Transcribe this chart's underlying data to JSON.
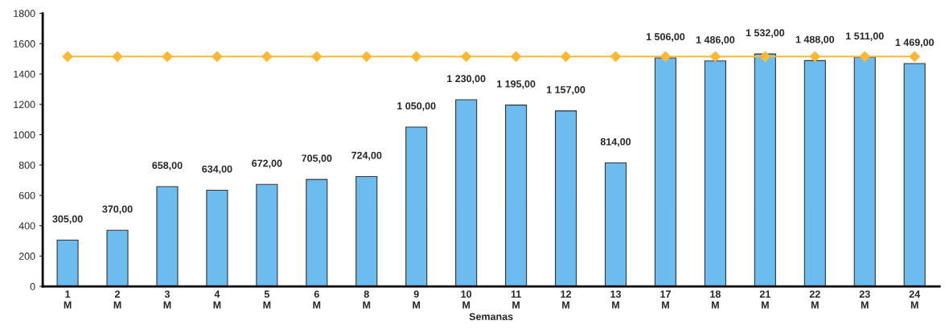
{
  "chart_data": {
    "type": "bar",
    "xlabel": "Semanas",
    "categories": [
      "1\nM",
      "2\nM",
      "3\nM",
      "4\nM",
      "5\nM",
      "6\nM",
      "8\nM",
      "9\nM",
      "10\nM",
      "11\nM",
      "12\nM",
      "13\nM",
      "17\nM",
      "18\nM",
      "21\nM",
      "22\nM",
      "23\nM",
      "24\nM"
    ],
    "series": [
      {
        "color": "#6dbcf0",
        "values": [
          305,
          370,
          658,
          634,
          672,
          705,
          724,
          1050,
          1230,
          1195,
          1157,
          814,
          1506,
          1486,
          1532,
          1488,
          1511,
          1469
        ],
        "value_labels": [
          "305,00",
          "370,00",
          "658,00",
          "634,00",
          "672,00",
          "705,00",
          "724,00",
          "1 050,00",
          "1 230,00",
          "1 195,00",
          "1 157,00",
          "814,00",
          "1 506,00",
          "1 486,00",
          "1 532,00",
          "1 488,00",
          "1 511,00",
          "1 469,00"
        ]
      },
      {
        "type": "line",
        "color": "#ffb833",
        "marker": "diamond",
        "values": [
          1515,
          1515,
          1515,
          1515,
          1515,
          1515,
          1515,
          1515,
          1515,
          1515,
          1515,
          1515,
          1515,
          1515,
          1515,
          1515,
          1515,
          1515
        ]
      }
    ],
    "ylim": [
      0,
      1800
    ],
    "yticks": [
      0,
      200,
      400,
      600,
      800,
      1000,
      1200,
      1400,
      1600,
      1800
    ],
    "grid": false
  }
}
